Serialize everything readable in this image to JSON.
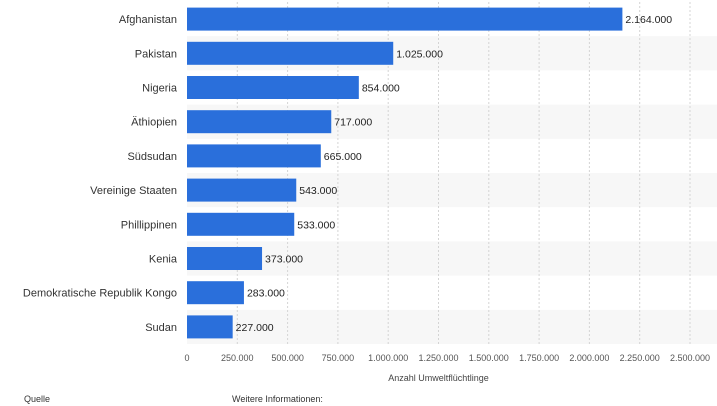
{
  "chart_data": {
    "type": "bar",
    "orientation": "horizontal",
    "categories": [
      "Afghanistan",
      "Pakistan",
      "Nigeria",
      "Äthiopien",
      "Südsudan",
      "Vereinige Staaten",
      "Phillippinen",
      "Kenia",
      "Demokratische Republik Kongo",
      "Sudan"
    ],
    "values": [
      2164000,
      1025000,
      854000,
      717000,
      665000,
      543000,
      533000,
      373000,
      283000,
      227000
    ],
    "value_labels": [
      "2.164.000",
      "1.025.000",
      "854.000",
      "717.000",
      "665.000",
      "543.000",
      "533.000",
      "373.000",
      "283.000",
      "227.000"
    ],
    "xlabel": "Anzahl Umweltflüchtlinge",
    "ylabel": "",
    "xlim": [
      0,
      2500000
    ],
    "ticks": [
      0,
      250000,
      500000,
      750000,
      1000000,
      1250000,
      1500000,
      1750000,
      2000000,
      2250000,
      2500000
    ],
    "tick_labels": [
      "0",
      "250.000",
      "500.000",
      "750.000",
      "1.000.000",
      "1.250.000",
      "1.500.000",
      "1.750.000",
      "2.000.000",
      "2.250.000",
      "2.500.000"
    ],
    "grid": "vertical dashed",
    "bar_color": "#2a6fdb"
  },
  "footer": {
    "source": "Quelle",
    "more_info": "Weitere Informationen:"
  }
}
